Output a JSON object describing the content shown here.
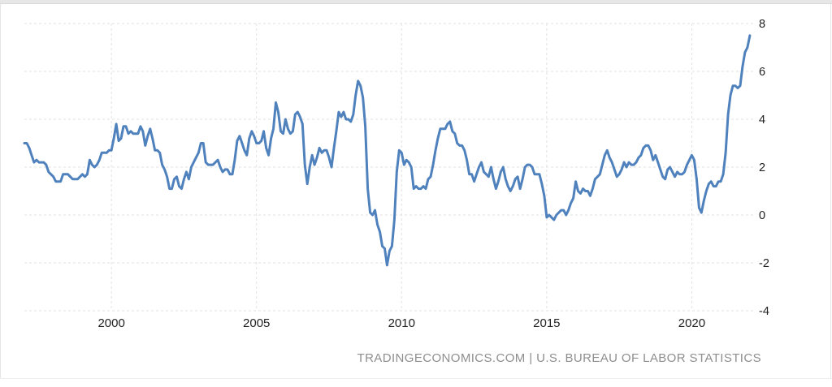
{
  "widget": {
    "attribution": "TRADINGECONOMICS.COM | U.S. BUREAU OF LABOR STATISTICS"
  },
  "colors": {
    "line": "#4f81bd",
    "grid": "#e2e2e2",
    "tick_label": "#222222",
    "attribution": "#8e8e8e",
    "top_strip": "#e7e7e7",
    "border": "#e4e4e4"
  },
  "chart_data": {
    "type": "line",
    "title": "",
    "legend": "none",
    "grid": true,
    "x_start_year": 1997,
    "x_start_month": 1,
    "x_frequency": "monthly",
    "xlim": [
      1997.0,
      2022.2
    ],
    "ylim": [
      -4,
      8
    ],
    "xticks": [
      2000,
      2005,
      2010,
      2015,
      2020
    ],
    "yticks": [
      8,
      6,
      4,
      2,
      0,
      -2,
      -4
    ],
    "values": [
      3.0,
      3.0,
      2.8,
      2.5,
      2.2,
      2.3,
      2.2,
      2.2,
      2.2,
      2.1,
      1.8,
      1.7,
      1.6,
      1.4,
      1.4,
      1.4,
      1.7,
      1.7,
      1.7,
      1.6,
      1.5,
      1.5,
      1.5,
      1.6,
      1.7,
      1.6,
      1.7,
      2.3,
      2.1,
      2.0,
      2.1,
      2.3,
      2.6,
      2.6,
      2.6,
      2.7,
      2.7,
      3.2,
      3.8,
      3.1,
      3.2,
      3.7,
      3.7,
      3.4,
      3.5,
      3.4,
      3.4,
      3.4,
      3.7,
      3.5,
      2.9,
      3.3,
      3.6,
      3.2,
      2.7,
      2.7,
      2.6,
      2.1,
      1.9,
      1.6,
      1.1,
      1.1,
      1.5,
      1.6,
      1.2,
      1.1,
      1.5,
      1.8,
      1.5,
      2.0,
      2.2,
      2.4,
      2.6,
      3.0,
      3.0,
      2.2,
      2.1,
      2.1,
      2.1,
      2.2,
      2.3,
      2.0,
      1.8,
      1.9,
      1.9,
      1.7,
      1.7,
      2.3,
      3.1,
      3.3,
      3.0,
      2.7,
      2.5,
      3.2,
      3.5,
      3.3,
      3.0,
      3.0,
      3.1,
      3.5,
      2.8,
      2.5,
      3.2,
      3.6,
      4.7,
      4.3,
      3.5,
      3.4,
      4.0,
      3.6,
      3.4,
      3.5,
      4.2,
      4.3,
      4.1,
      3.8,
      2.1,
      1.3,
      2.0,
      2.5,
      2.1,
      2.4,
      2.8,
      2.6,
      2.7,
      2.7,
      2.4,
      2.0,
      2.8,
      3.5,
      4.3,
      4.1,
      4.3,
      4.0,
      4.0,
      3.9,
      4.2,
      5.0,
      5.6,
      5.4,
      4.9,
      3.7,
      1.1,
      0.1,
      0.0,
      0.2,
      -0.4,
      -0.7,
      -1.3,
      -1.4,
      -2.1,
      -1.5,
      -1.3,
      -0.2,
      1.8,
      2.7,
      2.6,
      2.1,
      2.3,
      2.2,
      2.0,
      1.1,
      1.2,
      1.1,
      1.1,
      1.2,
      1.1,
      1.5,
      1.6,
      2.1,
      2.7,
      3.2,
      3.6,
      3.6,
      3.6,
      3.8,
      3.9,
      3.5,
      3.4,
      3.0,
      2.9,
      2.9,
      2.7,
      2.3,
      1.7,
      1.7,
      1.4,
      1.7,
      2.0,
      2.2,
      1.8,
      1.7,
      1.6,
      2.0,
      1.5,
      1.1,
      1.4,
      1.8,
      2.0,
      1.5,
      1.2,
      1.0,
      1.2,
      1.5,
      1.6,
      1.1,
      1.5,
      2.0,
      2.1,
      2.1,
      2.0,
      1.7,
      1.7,
      1.7,
      1.3,
      0.8,
      -0.1,
      0.0,
      -0.1,
      -0.2,
      0.0,
      0.1,
      0.2,
      0.2,
      0.0,
      0.2,
      0.5,
      0.7,
      1.4,
      1.0,
      0.9,
      1.1,
      1.0,
      1.0,
      0.8,
      1.1,
      1.5,
      1.6,
      1.7,
      2.1,
      2.5,
      2.7,
      2.4,
      2.2,
      1.9,
      1.6,
      1.7,
      1.9,
      2.2,
      2.0,
      2.2,
      2.1,
      2.1,
      2.2,
      2.4,
      2.5,
      2.8,
      2.9,
      2.9,
      2.7,
      2.3,
      2.5,
      2.2,
      1.9,
      1.6,
      1.5,
      1.9,
      2.0,
      1.8,
      1.6,
      1.8,
      1.7,
      1.7,
      1.8,
      2.1,
      2.3,
      2.5,
      2.3,
      1.5,
      0.3,
      0.1,
      0.6,
      1.0,
      1.3,
      1.4,
      1.2,
      1.2,
      1.4,
      1.4,
      1.7,
      2.6,
      4.2,
      5.0,
      5.4,
      5.4,
      5.3,
      5.4,
      6.2,
      6.8,
      7.0,
      7.5
    ]
  }
}
